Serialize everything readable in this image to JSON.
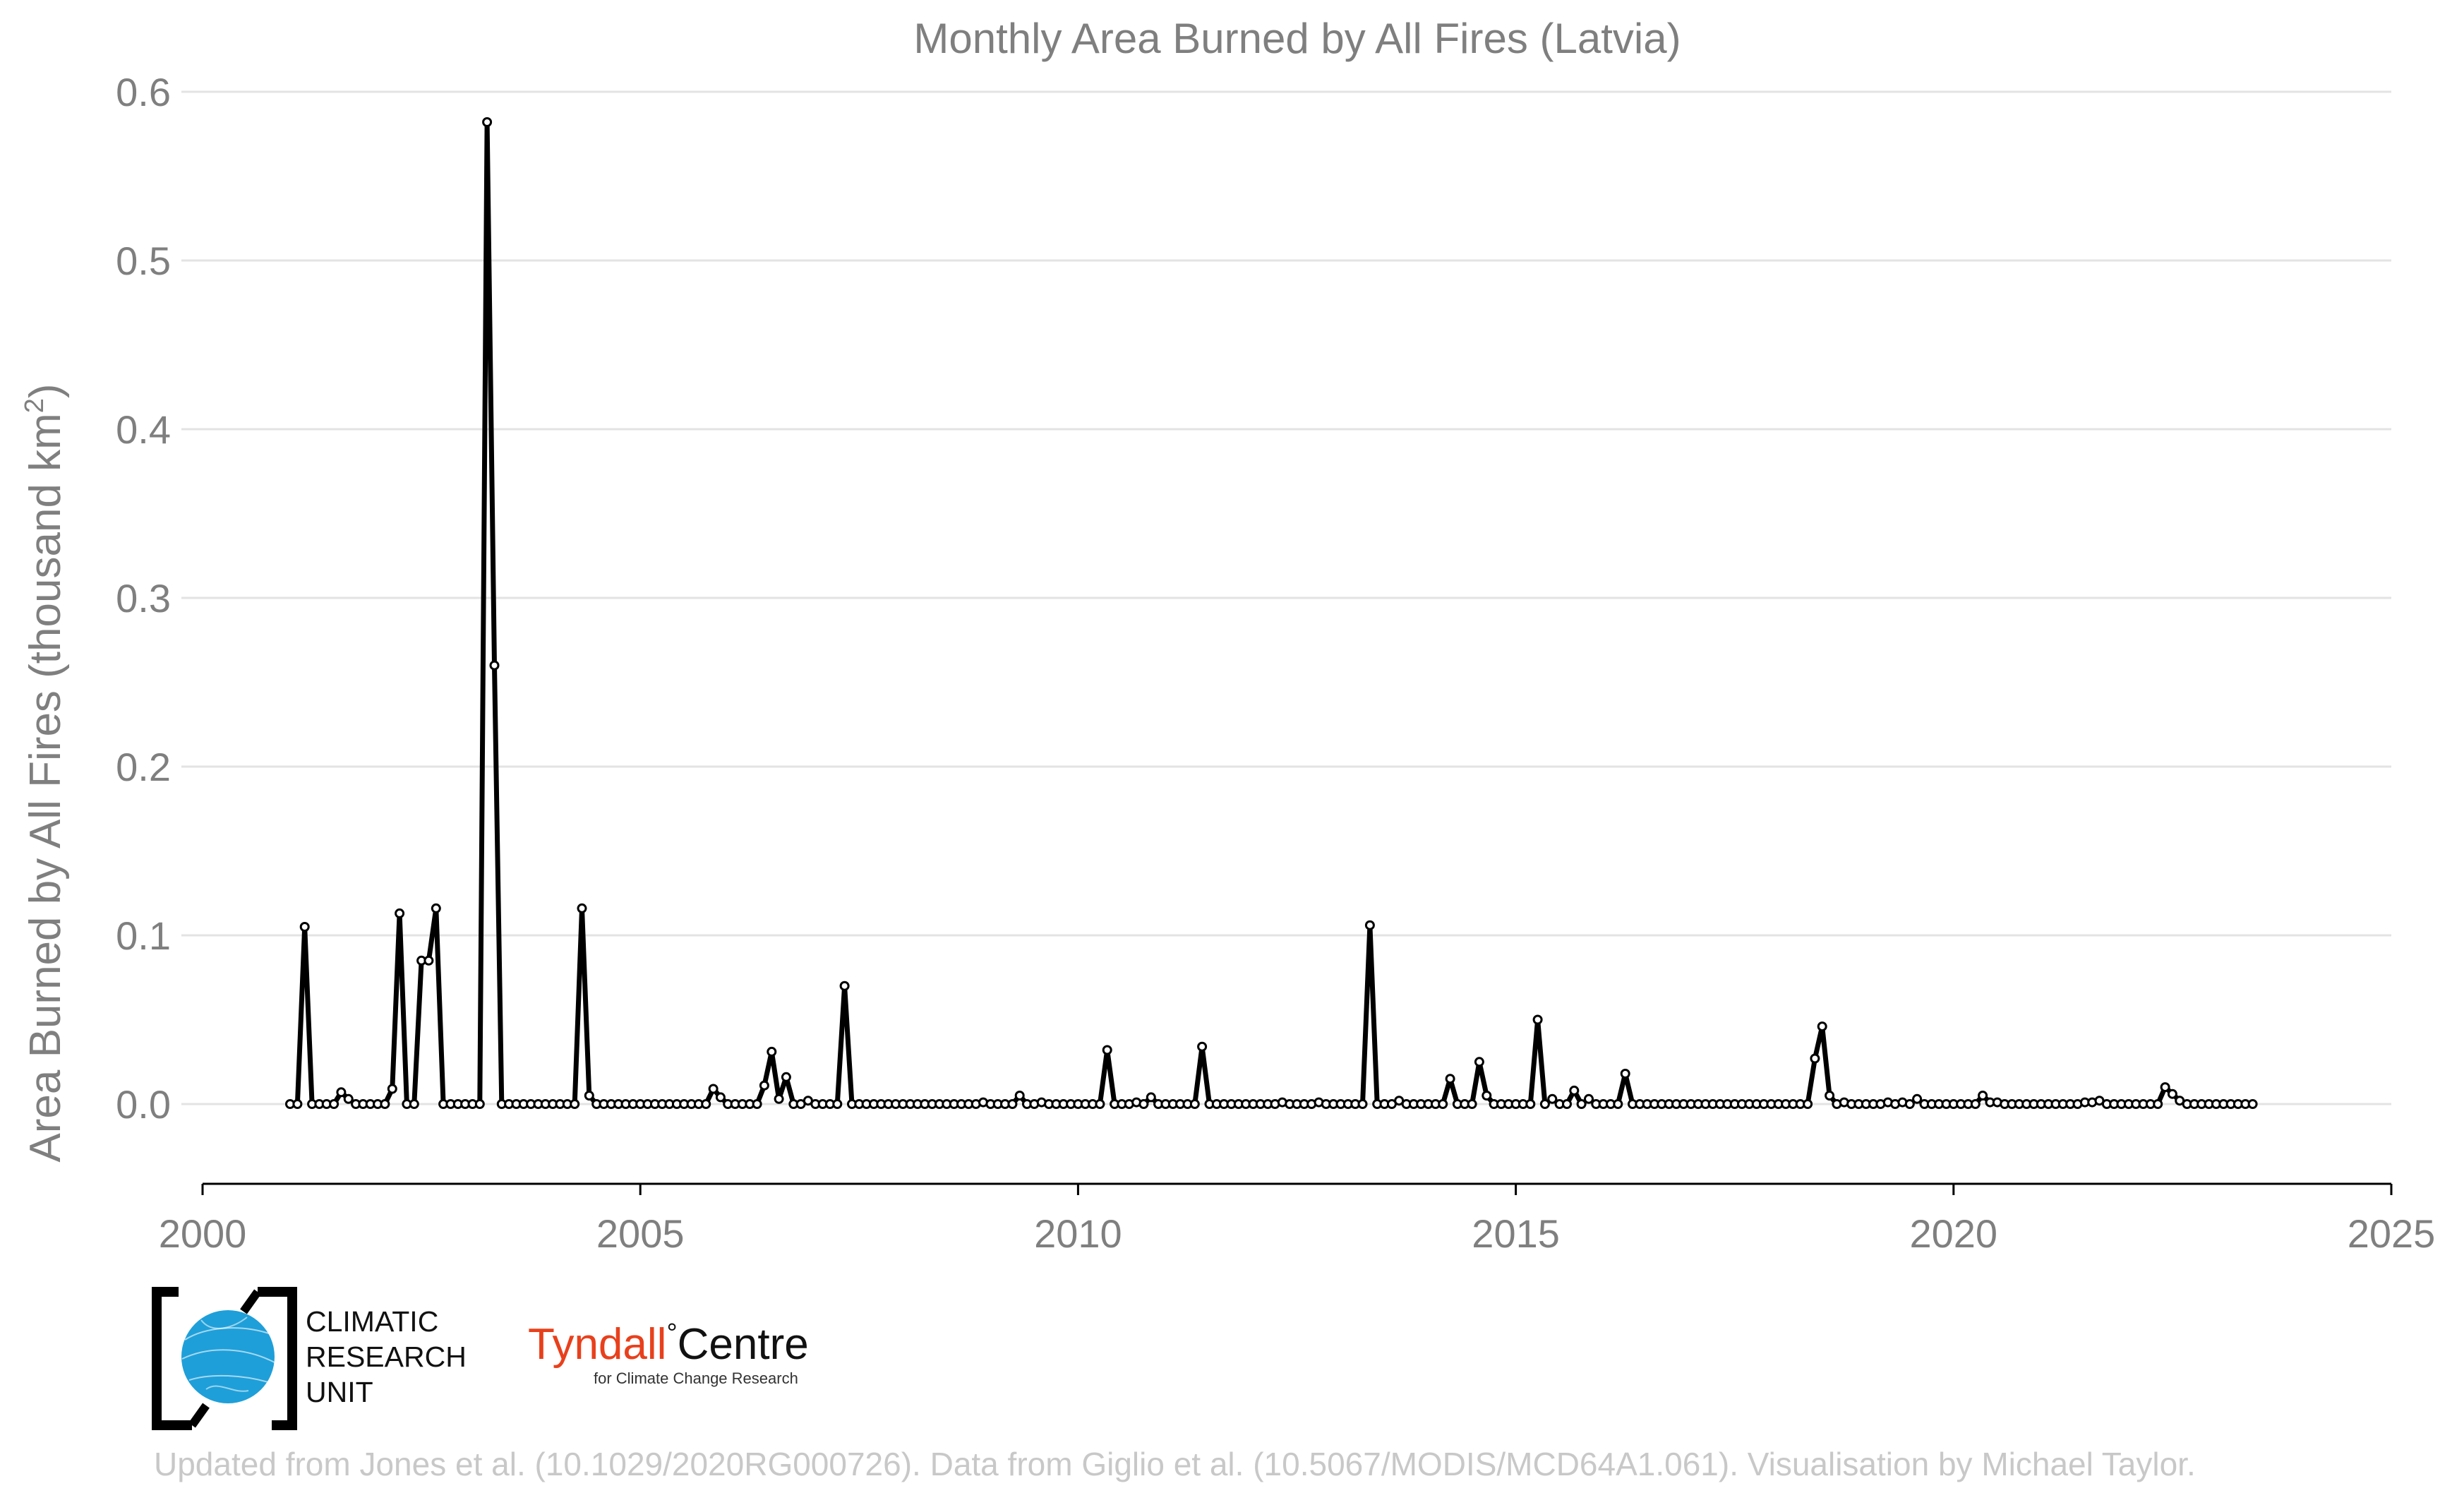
{
  "chart_data": {
    "type": "line",
    "title": "Monthly Area Burned by All Fires (Latvia)",
    "ylabel_main": "Area Burned by All Fires (thousand km",
    "ylabel_sup": "2",
    "ylabel_close": ")",
    "xlim": [
      2000,
      2025
    ],
    "ylim": [
      -0.045,
      0.6
    ],
    "xticks": [
      2000,
      2005,
      2010,
      2015,
      2020,
      2025
    ],
    "xtick_labels": [
      "2000",
      "2005",
      "2010",
      "2015",
      "2020",
      "2025"
    ],
    "yticks": [
      0.0,
      0.1,
      0.2,
      0.3,
      0.4,
      0.5,
      0.6
    ],
    "ytick_labels": [
      "0.0",
      "0.1",
      "0.2",
      "0.3",
      "0.4",
      "0.5",
      "0.6"
    ],
    "grid": "horizontal",
    "start_year": 2001,
    "start_month": 1,
    "series": [
      {
        "values": [
          0,
          0,
          0.105,
          0,
          0,
          0,
          0,
          0.007,
          0.003,
          0,
          0,
          0,
          0,
          0,
          0.009,
          0.113,
          0,
          0,
          0.085,
          0.085,
          0.116,
          0,
          0,
          0,
          0,
          0,
          0,
          0.582,
          0.26,
          0,
          0,
          0,
          0,
          0,
          0,
          0,
          0,
          0,
          0,
          0,
          0.116,
          0.005,
          0,
          0,
          0,
          0,
          0,
          0,
          0,
          0,
          0,
          0,
          0,
          0,
          0,
          0,
          0,
          0,
          0.009,
          0.004,
          0,
          0,
          0,
          0,
          0,
          0.011,
          0.031,
          0.003,
          0.016,
          0,
          0,
          0.002,
          0,
          0,
          0,
          0,
          0.07,
          0,
          0,
          0,
          0,
          0,
          0,
          0,
          0,
          0,
          0,
          0,
          0,
          0,
          0,
          0,
          0,
          0,
          0,
          0.001,
          0,
          0,
          0,
          0,
          0.005,
          0,
          0,
          0.001,
          0,
          0,
          0,
          0,
          0,
          0,
          0,
          0,
          0.032,
          0,
          0,
          0,
          0.001,
          0,
          0.004,
          0,
          0,
          0,
          0,
          0,
          0,
          0.034,
          0,
          0,
          0,
          0,
          0,
          0,
          0,
          0,
          0,
          0,
          0.001,
          0,
          0,
          0,
          0,
          0.001,
          0,
          0,
          0,
          0,
          0,
          0,
          0.106,
          0,
          0,
          0,
          0.002,
          0,
          0,
          0,
          0,
          0,
          0,
          0.015,
          0,
          0,
          0,
          0.025,
          0.005,
          0,
          0,
          0,
          0,
          0,
          0,
          0.05,
          0,
          0.003,
          0,
          0,
          0.008,
          0,
          0.003,
          0,
          0,
          0,
          0,
          0.018,
          0,
          0,
          0,
          0,
          0,
          0,
          0,
          0,
          0,
          0,
          0,
          0,
          0,
          0,
          0,
          0,
          0,
          0,
          0,
          0,
          0,
          0,
          0,
          0,
          0,
          0.027,
          0.046,
          0.005,
          0,
          0.001,
          0,
          0,
          0,
          0,
          0,
          0.001,
          0,
          0.001,
          0,
          0.003,
          0,
          0,
          0,
          0,
          0,
          0,
          0,
          0,
          0.005,
          0.001,
          0.001,
          0,
          0,
          0,
          0,
          0,
          0,
          0,
          0,
          0,
          0,
          0,
          0.001,
          0.001,
          0.002,
          0,
          0,
          0,
          0,
          0,
          0,
          0,
          0,
          0.01,
          0.006,
          0.002,
          0,
          0,
          0,
          0,
          0,
          0,
          0,
          0,
          0,
          0
        ]
      }
    ],
    "line_color": "#000000",
    "marker_fill": "#ffffff",
    "grid_color": "#e3e3e3",
    "text_color": "#7f7f7f"
  },
  "logos": {
    "cru": {
      "line1": "CLIMATIC",
      "line2": "RESEARCH",
      "line3": "UNIT",
      "globe_color": "#1e9fd9"
    },
    "tyndall": {
      "name": "Tyndall",
      "degree": "°",
      "centre": "Centre",
      "subtitle": "for Climate Change Research",
      "name_color": "#e8401c"
    }
  },
  "credit": "Updated from Jones et al. (10.1029/2020RG000726). Data from Giglio et al. (10.5067/MODIS/MCD64A1.061). Visualisation by Michael Taylor."
}
